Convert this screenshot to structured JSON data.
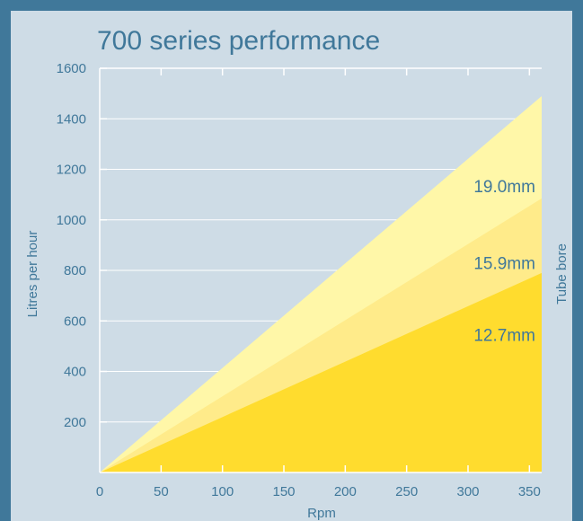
{
  "chart_data": {
    "type": "area",
    "title": "700 series performance",
    "xlabel": "Rpm",
    "ylabel": "Litres per hour",
    "right_label": "Tube bore",
    "xlim": [
      0,
      360
    ],
    "ylim": [
      0,
      1600
    ],
    "x_ticks": [
      0,
      50,
      100,
      150,
      200,
      250,
      300,
      350
    ],
    "y_ticks": [
      200,
      400,
      600,
      800,
      1000,
      1200,
      1400,
      1600
    ],
    "grid": true,
    "series": [
      {
        "name": "19.0mm",
        "x": [
          0,
          360
        ],
        "y": [
          0,
          1490
        ],
        "color": "#fff7a8"
      },
      {
        "name": "15.9mm",
        "x": [
          0,
          360
        ],
        "y": [
          0,
          1085
        ],
        "color": "#ffeb8a"
      },
      {
        "name": "12.7mm",
        "x": [
          0,
          360
        ],
        "y": [
          0,
          790
        ],
        "color": "#ffdc2e"
      }
    ],
    "series_label_y": [
      1135,
      830,
      545
    ]
  },
  "colors": {
    "background": "#40789a",
    "panel": "#cedce6",
    "text": "#40789a",
    "grid": "#ffffff"
  }
}
